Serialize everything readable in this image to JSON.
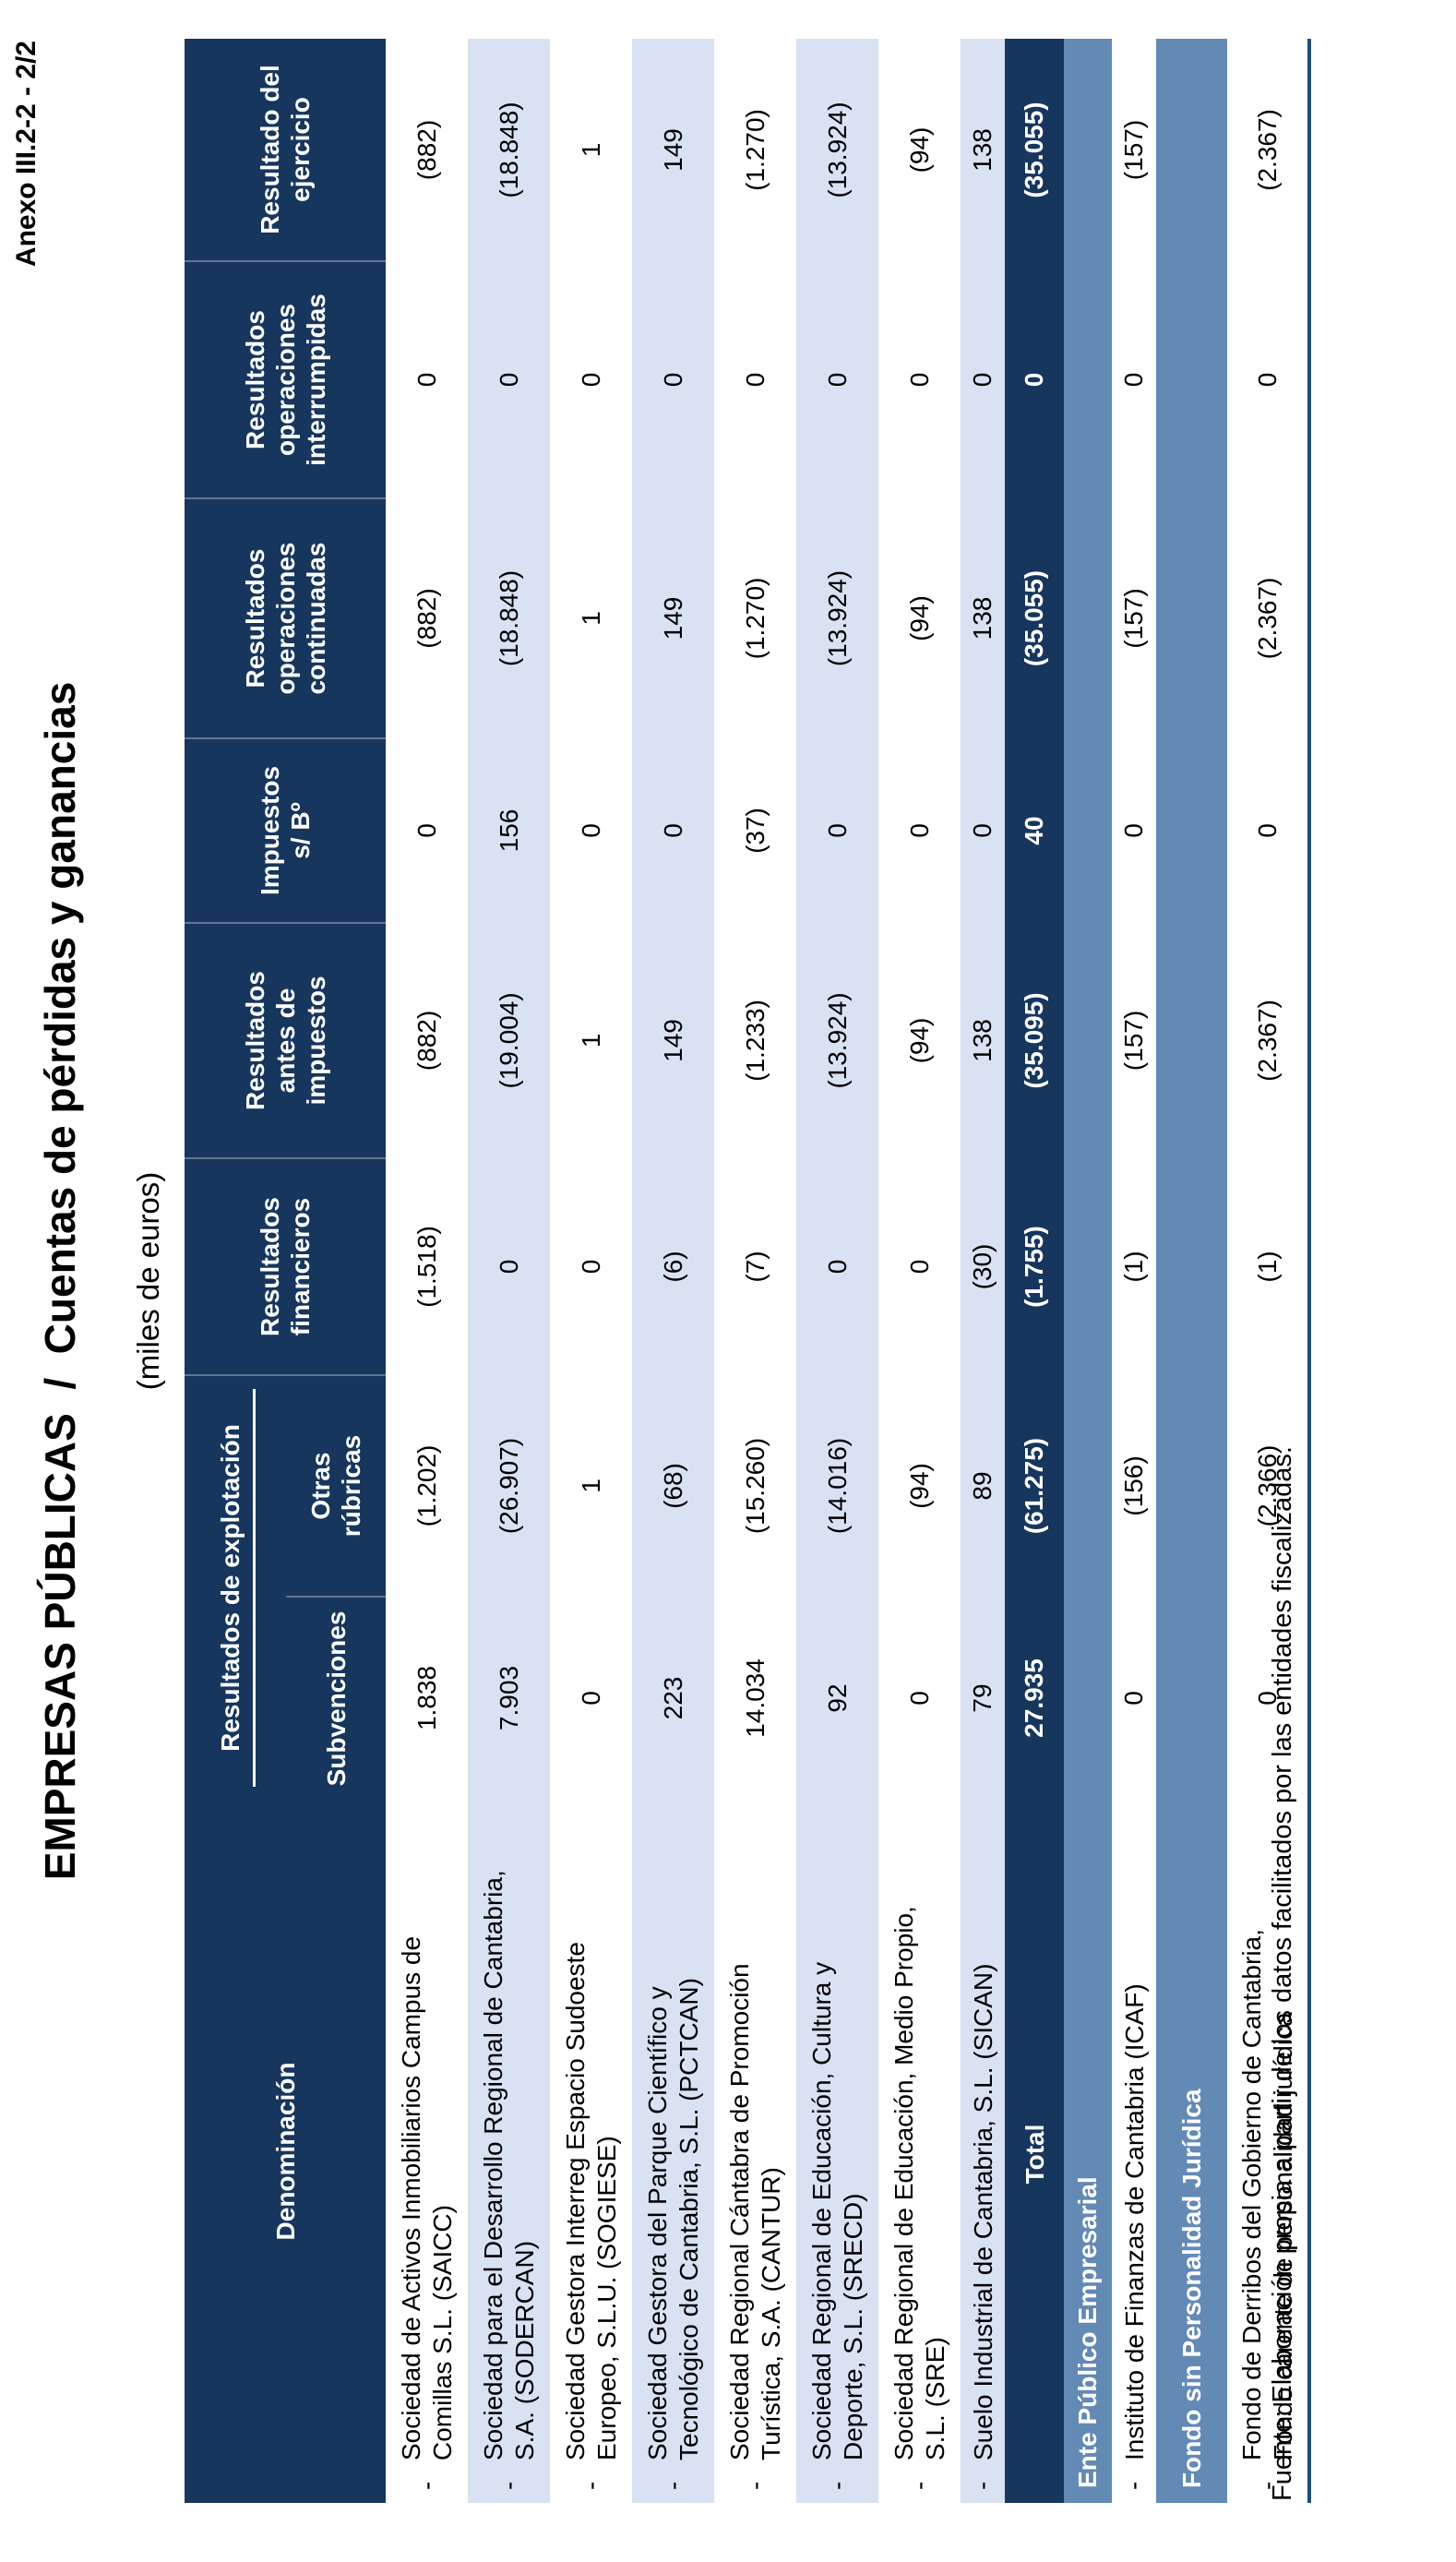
{
  "page": {
    "anexo": "Anexo III.2-2 - 2/2",
    "title": "EMPRESAS PÚBLICAS  /  Cuentas de pérdidas y ganancias",
    "units": "(miles de euros)",
    "fuente": "Fuente: Elaboración propia a partir de los datos facilitados por las entidades fiscalizadas."
  },
  "colors": {
    "header_navy": "#17365D",
    "row_stripe_blue": "#D9E2F3",
    "section_band_blue": "#6389B5",
    "bottom_rule_blue": "#1F4E79"
  },
  "table": {
    "head": {
      "denominacion": "Denominación",
      "grupo": "Resultados de explotación",
      "subvenciones": "Subvenciones",
      "otras": "Otras\nrúbricas",
      "financieros": "Resultados\nfinancieros",
      "antes": "Resultados\nantes de\nimpuestos",
      "impuestos": "Impuestos\ns/ Bº",
      "continuadas": "Resultados\noperaciones\ncontinuadas",
      "interrumpidas": "Resultados\noperaciones\ninterrumpidas",
      "ejercicio": "Resultado del\nejercicio"
    },
    "rows": [
      {
        "type": "company",
        "lines": 2,
        "shade": false,
        "name": "Sociedad de Activos Inmobiliarios Campus de\nComillas S.L. (SAICC)",
        "values": [
          "1.838",
          "(1.202)",
          "(1.518)",
          "(882)",
          "0",
          "(882)",
          "0",
          "(882)"
        ]
      },
      {
        "type": "company",
        "lines": 2,
        "shade": true,
        "name": "Sociedad para el Desarrollo Regional de Cantabria,\nS.A. (SODERCAN)",
        "values": [
          "7.903",
          "(26.907)",
          "0",
          "(19.004)",
          "156",
          "(18.848)",
          "0",
          "(18.848)"
        ]
      },
      {
        "type": "company",
        "lines": 2,
        "shade": false,
        "name": "Sociedad Gestora Interreg Espacio Sudoeste\nEuropeo, S.L.U. (SOGIESE)",
        "values": [
          "0",
          "1",
          "0",
          "1",
          "0",
          "1",
          "0",
          "1"
        ]
      },
      {
        "type": "company",
        "lines": 2,
        "shade": true,
        "name": "Sociedad Gestora del Parque Científico y\nTecnológico de Cantabria, S.L. (PCTCAN)",
        "values": [
          "223",
          "(68)",
          "(6)",
          "149",
          "0",
          "149",
          "0",
          "149"
        ]
      },
      {
        "type": "company",
        "lines": 2,
        "shade": false,
        "name": "Sociedad Regional Cántabra de Promoción\nTurística, S.A. (CANTUR)",
        "values": [
          "14.034",
          "(15.260)",
          "(7)",
          "(1.233)",
          "(37)",
          "(1.270)",
          "0",
          "(1.270)"
        ]
      },
      {
        "type": "company",
        "lines": 2,
        "shade": true,
        "name": "Sociedad Regional de Educación, Cultura y\nDeporte, S.L. (SRECD)",
        "values": [
          "92",
          "(14.016)",
          "0",
          "(13.924)",
          "0",
          "(13.924)",
          "0",
          "(13.924)"
        ]
      },
      {
        "type": "company",
        "lines": 2,
        "shade": false,
        "name": "Sociedad Regional de Educación, Medio Propio,\nS.L. (SRE)",
        "values": [
          "0",
          "(94)",
          "0",
          "(94)",
          "0",
          "(94)",
          "0",
          "(94)"
        ]
      },
      {
        "type": "company",
        "lines": 1,
        "shade": true,
        "name": "Suelo Industrial de Cantabria, S.L. (SICAN)",
        "values": [
          "79",
          "89",
          "(30)",
          "138",
          "0",
          "138",
          "0",
          "138"
        ]
      },
      {
        "type": "total",
        "name": "Total",
        "values": [
          "27.935",
          "(61.275)",
          "(1.755)",
          "(35.095)",
          "40",
          "(35.055)",
          "0",
          "(35.055)"
        ]
      },
      {
        "type": "section",
        "label": "Ente Público Empresarial"
      },
      {
        "type": "company",
        "lines": 1,
        "shade": false,
        "name": "Instituto de Finanzas de Cantabria (ICAF)",
        "values": [
          "0",
          "(156)",
          "(1)",
          "(157)",
          "0",
          "(157)",
          "0",
          "(157)"
        ]
      },
      {
        "type": "section",
        "label": "Fondo sin Personalidad Jurídica"
      },
      {
        "type": "company",
        "lines": 2,
        "shade": false,
        "name": "Fondo de Derribos del Gobierno de Cantabria,\nFondo carente de personalidad jurídica",
        "values": [
          "0",
          "(2.366)",
          "(1)",
          "(2.367)",
          "0",
          "(2.367)",
          "0",
          "(2.367)"
        ]
      }
    ]
  }
}
